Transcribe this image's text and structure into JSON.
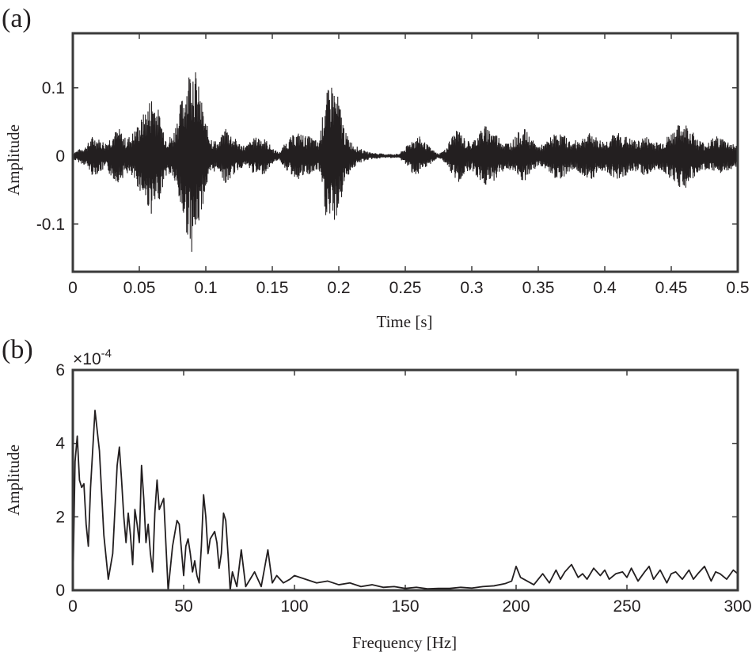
{
  "chart_data": [
    {
      "panel_label": "(a)",
      "type": "line",
      "xlabel": "Time [s]",
      "ylabel": "Amplitude",
      "xlim": [
        0,
        0.5
      ],
      "ylim": [
        -0.17,
        0.18
      ],
      "xticks": [
        0,
        0.05,
        0.1,
        0.15,
        0.2,
        0.25,
        0.3,
        0.35,
        0.4,
        0.45,
        0.5
      ],
      "xtick_labels": [
        "0",
        "0.05",
        "0.1",
        "0.15",
        "0.2",
        "0.25",
        "0.3",
        "0.35",
        "0.4",
        "0.45",
        "0.5"
      ],
      "yticks": [
        -0.1,
        0,
        0.1
      ],
      "ytick_labels": [
        "-0.1",
        "0",
        "0.1"
      ],
      "line_color": "#231f20",
      "envelope": {
        "t": [
          0,
          0.005,
          0.01,
          0.015,
          0.02,
          0.025,
          0.03,
          0.035,
          0.04,
          0.045,
          0.05,
          0.055,
          0.06,
          0.065,
          0.07,
          0.075,
          0.08,
          0.085,
          0.09,
          0.095,
          0.1,
          0.105,
          0.11,
          0.115,
          0.12,
          0.125,
          0.13,
          0.135,
          0.14,
          0.145,
          0.15,
          0.155,
          0.16,
          0.165,
          0.17,
          0.175,
          0.18,
          0.185,
          0.19,
          0.195,
          0.2,
          0.205,
          0.21,
          0.215,
          0.22,
          0.225,
          0.23,
          0.235,
          0.24,
          0.245,
          0.25,
          0.255,
          0.26,
          0.265,
          0.27,
          0.275,
          0.28,
          0.285,
          0.29,
          0.295,
          0.3,
          0.305,
          0.31,
          0.315,
          0.32,
          0.325,
          0.33,
          0.335,
          0.34,
          0.345,
          0.35,
          0.355,
          0.36,
          0.365,
          0.37,
          0.375,
          0.38,
          0.385,
          0.39,
          0.395,
          0.4,
          0.405,
          0.41,
          0.415,
          0.42,
          0.425,
          0.43,
          0.435,
          0.44,
          0.445,
          0.45,
          0.455,
          0.46,
          0.465,
          0.47,
          0.475,
          0.48,
          0.485,
          0.49,
          0.495,
          0.5
        ],
        "upper": [
          0.005,
          0.01,
          0.015,
          0.03,
          0.025,
          0.02,
          0.035,
          0.04,
          0.025,
          0.035,
          0.05,
          0.07,
          0.095,
          0.065,
          0.03,
          0.03,
          0.07,
          0.11,
          0.15,
          0.1,
          0.05,
          0.025,
          0.02,
          0.045,
          0.03,
          0.02,
          0.015,
          0.025,
          0.03,
          0.025,
          0.012,
          0.005,
          0.02,
          0.03,
          0.035,
          0.03,
          0.028,
          0.02,
          0.09,
          0.11,
          0.085,
          0.035,
          0.02,
          0.012,
          0.007,
          0.005,
          0.004,
          0.003,
          0.003,
          0.003,
          0.012,
          0.025,
          0.03,
          0.02,
          0.01,
          0.003,
          0.01,
          0.03,
          0.04,
          0.025,
          0.02,
          0.035,
          0.045,
          0.04,
          0.03,
          0.02,
          0.022,
          0.035,
          0.04,
          0.025,
          0.015,
          0.018,
          0.03,
          0.035,
          0.03,
          0.02,
          0.025,
          0.03,
          0.035,
          0.025,
          0.022,
          0.03,
          0.035,
          0.03,
          0.025,
          0.022,
          0.03,
          0.025,
          0.02,
          0.025,
          0.035,
          0.045,
          0.05,
          0.04,
          0.025,
          0.02,
          0.025,
          0.03,
          0.025,
          0.02,
          0.015
        ],
        "lower": [
          -0.005,
          -0.01,
          -0.015,
          -0.03,
          -0.025,
          -0.02,
          -0.035,
          -0.04,
          -0.025,
          -0.035,
          -0.05,
          -0.07,
          -0.09,
          -0.065,
          -0.03,
          -0.03,
          -0.07,
          -0.11,
          -0.145,
          -0.1,
          -0.05,
          -0.025,
          -0.02,
          -0.045,
          -0.03,
          -0.02,
          -0.015,
          -0.025,
          -0.03,
          -0.025,
          -0.012,
          -0.005,
          -0.02,
          -0.03,
          -0.035,
          -0.03,
          -0.028,
          -0.02,
          -0.09,
          -0.105,
          -0.085,
          -0.035,
          -0.02,
          -0.012,
          -0.007,
          -0.005,
          -0.004,
          -0.003,
          -0.003,
          -0.003,
          -0.012,
          -0.025,
          -0.03,
          -0.02,
          -0.01,
          -0.003,
          -0.01,
          -0.03,
          -0.04,
          -0.025,
          -0.02,
          -0.035,
          -0.045,
          -0.04,
          -0.03,
          -0.02,
          -0.022,
          -0.035,
          -0.04,
          -0.025,
          -0.015,
          -0.018,
          -0.03,
          -0.035,
          -0.03,
          -0.02,
          -0.025,
          -0.03,
          -0.035,
          -0.025,
          -0.022,
          -0.03,
          -0.035,
          -0.03,
          -0.025,
          -0.022,
          -0.03,
          -0.025,
          -0.02,
          -0.025,
          -0.035,
          -0.045,
          -0.05,
          -0.04,
          -0.025,
          -0.02,
          -0.025,
          -0.03,
          -0.025,
          -0.02,
          -0.015
        ]
      }
    },
    {
      "panel_label": "(b)",
      "type": "line",
      "xlabel": "Frequency [Hz]",
      "ylabel": "Amplitude",
      "exponent_prefix": "×10",
      "exponent_power": "-4",
      "xlim": [
        0,
        300
      ],
      "ylim": [
        0,
        6
      ],
      "xticks": [
        0,
        50,
        100,
        150,
        200,
        250,
        300
      ],
      "xtick_labels": [
        "0",
        "50",
        "100",
        "150",
        "200",
        "250",
        "300"
      ],
      "yticks": [
        0,
        2,
        4,
        6
      ],
      "ytick_labels": [
        "0",
        "2",
        "4",
        "6"
      ],
      "line_color": "#231f20",
      "x": [
        0,
        1,
        2,
        3,
        4,
        5,
        6,
        7,
        8,
        10,
        12,
        14,
        16,
        18,
        20,
        21,
        22,
        23,
        24,
        25,
        26,
        27,
        28,
        29,
        30,
        31,
        32,
        33,
        34,
        35,
        36,
        37,
        38,
        39,
        41,
        43,
        45,
        47,
        48,
        50,
        51,
        52,
        53,
        54,
        55,
        56,
        57,
        58,
        59,
        60,
        61,
        62,
        63,
        64,
        65,
        66,
        67,
        68,
        69,
        70,
        71,
        72,
        74,
        76,
        78,
        80,
        82,
        85,
        88,
        90,
        92,
        95,
        98,
        100,
        105,
        110,
        115,
        120,
        125,
        130,
        135,
        140,
        145,
        150,
        155,
        160,
        165,
        170,
        175,
        180,
        185,
        190,
        195,
        198,
        200,
        202,
        205,
        208,
        210,
        212,
        215,
        218,
        220,
        222,
        225,
        228,
        230,
        232,
        235,
        238,
        240,
        242,
        245,
        248,
        250,
        252,
        255,
        258,
        260,
        262,
        265,
        268,
        270,
        272,
        275,
        278,
        280,
        282,
        285,
        288,
        290,
        292,
        295,
        298,
        300
      ],
      "y": [
        0,
        3.5,
        4.2,
        3.0,
        2.8,
        2.9,
        1.8,
        1.2,
        2.8,
        4.9,
        3.8,
        1.5,
        0.3,
        1.0,
        3.4,
        3.9,
        3.0,
        2.0,
        1.3,
        2.1,
        1.5,
        0.7,
        2.2,
        1.8,
        1.3,
        3.4,
        2.5,
        1.3,
        1.8,
        1.0,
        0.5,
        2.1,
        3.0,
        2.2,
        2.5,
        0.0,
        1.2,
        1.9,
        1.8,
        0.4,
        1.2,
        1.4,
        1.0,
        0.5,
        0.8,
        0.4,
        0.2,
        1.2,
        2.6,
        2.0,
        1.0,
        1.4,
        1.5,
        1.6,
        1.3,
        0.6,
        1.0,
        2.1,
        1.9,
        1.0,
        0.0,
        0.5,
        0.1,
        1.1,
        0.1,
        0.3,
        0.5,
        0.1,
        1.1,
        0.2,
        0.4,
        0.2,
        0.3,
        0.4,
        0.3,
        0.2,
        0.25,
        0.15,
        0.2,
        0.1,
        0.15,
        0.08,
        0.1,
        0.05,
        0.08,
        0.04,
        0.05,
        0.05,
        0.08,
        0.06,
        0.1,
        0.12,
        0.18,
        0.25,
        0.65,
        0.35,
        0.25,
        0.15,
        0.3,
        0.45,
        0.2,
        0.55,
        0.3,
        0.5,
        0.7,
        0.35,
        0.45,
        0.3,
        0.6,
        0.4,
        0.55,
        0.3,
        0.45,
        0.5,
        0.35,
        0.6,
        0.25,
        0.5,
        0.65,
        0.3,
        0.55,
        0.2,
        0.45,
        0.5,
        0.3,
        0.55,
        0.3,
        0.45,
        0.65,
        0.25,
        0.5,
        0.45,
        0.3,
        0.55,
        0.45
      ]
    }
  ]
}
